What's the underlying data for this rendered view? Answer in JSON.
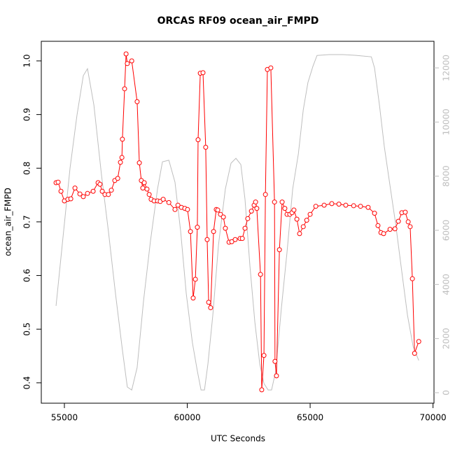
{
  "chart_data": {
    "type": "line",
    "title": "ORCAS RF09 ocean_air_FMPD",
    "x_label": "UTC Seconds",
    "y_label": "ocean_air_FMPD",
    "xlim": [
      54060,
      70040
    ],
    "xticks": [
      55000,
      60000,
      65000,
      70000
    ],
    "ylim": [
      0.362,
      1.0365
    ],
    "yticks": [
      0.4,
      0.5,
      0.6,
      0.7,
      0.8,
      0.9,
      {
        "value": 1.0,
        "label": "1.0"
      }
    ],
    "y2lim": [
      -388,
      12983
    ],
    "y2ticks": [
      0,
      2000,
      4000,
      6000,
      8000,
      10000,
      12000
    ],
    "series": [
      {
        "color": "#ff0000",
        "markers": true,
        "x": [
          54660,
          54745,
          54860,
          55000,
          55140,
          55260,
          55430,
          55630,
          55770,
          55940,
          56170,
          56370,
          56450,
          56540,
          56650,
          56790,
          56910,
          57050,
          57170,
          57280,
          57340,
          57360,
          57450,
          57510,
          57560,
          57740,
          57960,
          58050,
          58130,
          58190,
          58250,
          58360,
          58450,
          58530,
          58650,
          58790,
          58900,
          59020,
          59250,
          59500,
          59620,
          59760,
          59900,
          60010,
          60130,
          60240,
          60330,
          60410,
          60440,
          60530,
          60640,
          60750,
          60810,
          60870,
          60950,
          61070,
          61180,
          61240,
          61350,
          61470,
          61550,
          61700,
          61810,
          61950,
          62150,
          62240,
          62350,
          62460,
          62610,
          62720,
          62780,
          62830,
          62980,
          63030,
          63120,
          63180,
          63260,
          63400,
          63550,
          63570,
          63630,
          63750,
          63860,
          63970,
          64060,
          64170,
          64260,
          64340,
          64460,
          64570,
          64720,
          64860,
          65000,
          65230,
          65570,
          65880,
          66170,
          66450,
          66770,
          67050,
          67360,
          67620,
          67760,
          67880,
          67990,
          68250,
          68450,
          68590,
          68730,
          68870,
          68990,
          69070,
          69160,
          69250,
          69420
        ],
        "values": [
          0.773,
          0.774,
          0.757,
          0.739,
          0.742,
          0.743,
          0.763,
          0.752,
          0.747,
          0.753,
          0.757,
          0.773,
          0.77,
          0.757,
          0.751,
          0.751,
          0.759,
          0.777,
          0.781,
          0.811,
          0.82,
          0.854,
          0.948,
          1.013,
          0.995,
          1.0,
          0.924,
          0.81,
          0.777,
          0.763,
          0.773,
          0.761,
          0.751,
          0.742,
          0.739,
          0.739,
          0.738,
          0.742,
          0.736,
          0.723,
          0.731,
          0.727,
          0.725,
          0.723,
          0.682,
          0.558,
          0.593,
          0.69,
          0.853,
          0.977,
          0.978,
          0.839,
          0.667,
          0.55,
          0.54,
          0.682,
          0.723,
          0.722,
          0.714,
          0.709,
          0.688,
          0.662,
          0.663,
          0.667,
          0.669,
          0.669,
          0.688,
          0.706,
          0.72,
          0.731,
          0.737,
          0.725,
          0.602,
          0.387,
          0.451,
          0.751,
          0.984,
          0.987,
          0.737,
          0.44,
          0.413,
          0.648,
          0.737,
          0.725,
          0.714,
          0.714,
          0.717,
          0.722,
          0.705,
          0.678,
          0.691,
          0.703,
          0.714,
          0.729,
          0.731,
          0.734,
          0.733,
          0.731,
          0.73,
          0.729,
          0.727,
          0.716,
          0.693,
          0.68,
          0.678,
          0.686,
          0.687,
          0.701,
          0.717,
          0.718,
          0.7,
          0.691,
          0.594,
          0.455,
          0.477
        ]
      },
      {
        "color": "#bebebe",
        "axis": "y2",
        "markers": false,
        "x": [
          54660,
          54940,
          55230,
          55510,
          55770,
          55940,
          56200,
          56510,
          56790,
          57080,
          57360,
          57560,
          57740,
          57960,
          58220,
          58500,
          58790,
          58990,
          59250,
          59500,
          59730,
          59960,
          60210,
          60410,
          60560,
          60700,
          60840,
          61040,
          61270,
          61550,
          61780,
          61980,
          62180,
          62350,
          62550,
          62750,
          62950,
          63120,
          63290,
          63430,
          63600,
          63830,
          64060,
          64290,
          64520,
          64720,
          64910,
          65110,
          65280,
          65770,
          66340,
          66910,
          67490,
          67620,
          67820,
          68020,
          68250,
          68480,
          68700,
          68960,
          69190,
          69420
        ],
        "values": [
          3207,
          5715,
          8300,
          10240,
          11715,
          11970,
          10630,
          8040,
          5970,
          3650,
          1580,
          210,
          100,
          930,
          3390,
          5590,
          7530,
          8530,
          8590,
          7780,
          5970,
          3650,
          1840,
          800,
          100,
          100,
          1060,
          2870,
          5460,
          7530,
          8480,
          8660,
          8430,
          7140,
          4680,
          2610,
          1060,
          340,
          100,
          100,
          800,
          3130,
          5200,
          7530,
          8820,
          10450,
          11460,
          12050,
          12460,
          12490,
          12490,
          12460,
          12410,
          12000,
          10630,
          9080,
          7650,
          6230,
          4680,
          2870,
          1710,
          1190
        ]
      }
    ]
  }
}
